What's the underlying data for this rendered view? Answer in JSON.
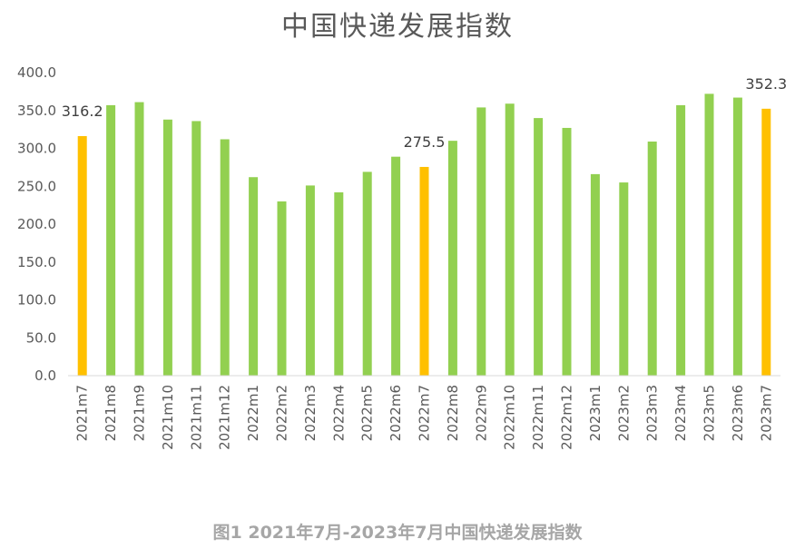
{
  "chart_data": {
    "type": "bar",
    "title": "中国快递发展指数",
    "caption": "图1 2021年7月-2023年7月中国快递发展指数",
    "categories": [
      "2021m7",
      "2021m8",
      "2021m9",
      "2021m10",
      "2021m11",
      "2021m12",
      "2022m1",
      "2022m2",
      "2022m3",
      "2022m4",
      "2022m5",
      "2022m6",
      "2022m7",
      "2022m8",
      "2022m9",
      "2022m10",
      "2022m11",
      "2022m12",
      "2023m1",
      "2023m2",
      "2023m3",
      "2023m4",
      "2023m5",
      "2023m6",
      "2023m7"
    ],
    "values": [
      316.2,
      357,
      361,
      338,
      336,
      312,
      262,
      230,
      251,
      242,
      269,
      289,
      275.5,
      310,
      354,
      359,
      340,
      327,
      266,
      255,
      309,
      357,
      372,
      367,
      352.3
    ],
    "highlighted_indices": [
      0,
      12,
      24
    ],
    "data_labels": [
      {
        "index": 0,
        "text": "316.2"
      },
      {
        "index": 12,
        "text": "275.5"
      },
      {
        "index": 24,
        "text": "352.3"
      }
    ],
    "ylim": [
      0,
      400
    ],
    "yticks": [
      "0.0",
      "50.0",
      "100.0",
      "150.0",
      "200.0",
      "250.0",
      "300.0",
      "350.0",
      "400.0"
    ],
    "xlabel": "",
    "ylabel": "",
    "grid": false,
    "legend": "none",
    "colors": {
      "default": "#92d050",
      "highlight": "#ffc000",
      "axis": "#d9d9d9",
      "text": "#595959"
    }
  }
}
